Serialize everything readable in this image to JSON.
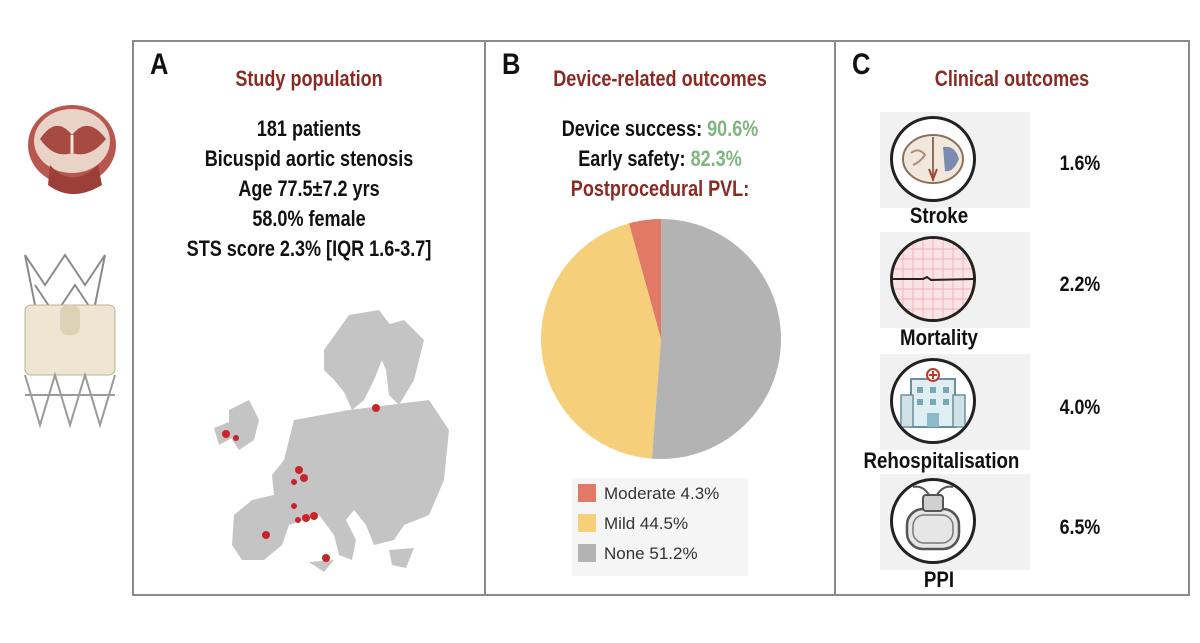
{
  "panel_a": {
    "letter": "A",
    "title": "Study population",
    "lines": [
      "181 patients",
      "Bicuspid aortic stenosis",
      "Age 77.5±7.2 yrs",
      "58.0% female",
      "STS score 2.3% [IQR 1.6-3.7]"
    ]
  },
  "panel_b": {
    "letter": "B",
    "title": "Device-related outcomes",
    "device_success_label": "Device success:",
    "device_success_value": "90.6%",
    "early_safety_label": "Early safety:",
    "early_safety_value": "82.3%",
    "pvl_title": "Postprocedural PVL:"
  },
  "panel_c": {
    "letter": "C",
    "title": "Clinical outcomes",
    "outcomes": [
      {
        "label": "Stroke",
        "value": "1.6%"
      },
      {
        "label": "Mortality",
        "value": "2.2%"
      },
      {
        "label": "Rehospitalisation",
        "value": "4.0%"
      },
      {
        "label": "PPI",
        "value": "6.5%"
      }
    ]
  },
  "colors": {
    "title": "#8b2a22",
    "green": "#7fb57e",
    "moderate": "#e07a66",
    "mild": "#f5cf7a",
    "none": "#b3b3b3"
  },
  "chart_data": {
    "type": "pie",
    "title": "Postprocedural PVL:",
    "categories": [
      "Moderate",
      "Mild",
      "None"
    ],
    "values": [
      4.3,
      44.5,
      51.2
    ],
    "legend_labels": [
      "Moderate 4.3%",
      "Mild 44.5%",
      "None 51.2%"
    ],
    "legend_position": "bottom"
  }
}
